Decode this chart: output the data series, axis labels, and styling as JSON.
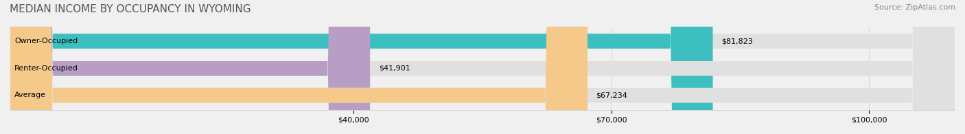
{
  "title": "MEDIAN INCOME BY OCCUPANCY IN WYOMING",
  "source": "Source: ZipAtlas.com",
  "categories": [
    "Owner-Occupied",
    "Renter-Occupied",
    "Average"
  ],
  "values": [
    81823,
    41901,
    67234
  ],
  "bar_colors": [
    "#3dbfbf",
    "#b89ec4",
    "#f5c98a"
  ],
  "bar_labels": [
    "$81,823",
    "$41,901",
    "$67,234"
  ],
  "xlim": [
    0,
    110000
  ],
  "xticks": [
    40000,
    70000,
    100000
  ],
  "xticklabels": [
    "$40,000",
    "$70,000",
    "$100,000"
  ],
  "background_color": "#f0f0f0",
  "bar_bg_color": "#e0e0e0",
  "title_fontsize": 11,
  "source_fontsize": 8,
  "label_fontsize": 8,
  "bar_height": 0.55
}
